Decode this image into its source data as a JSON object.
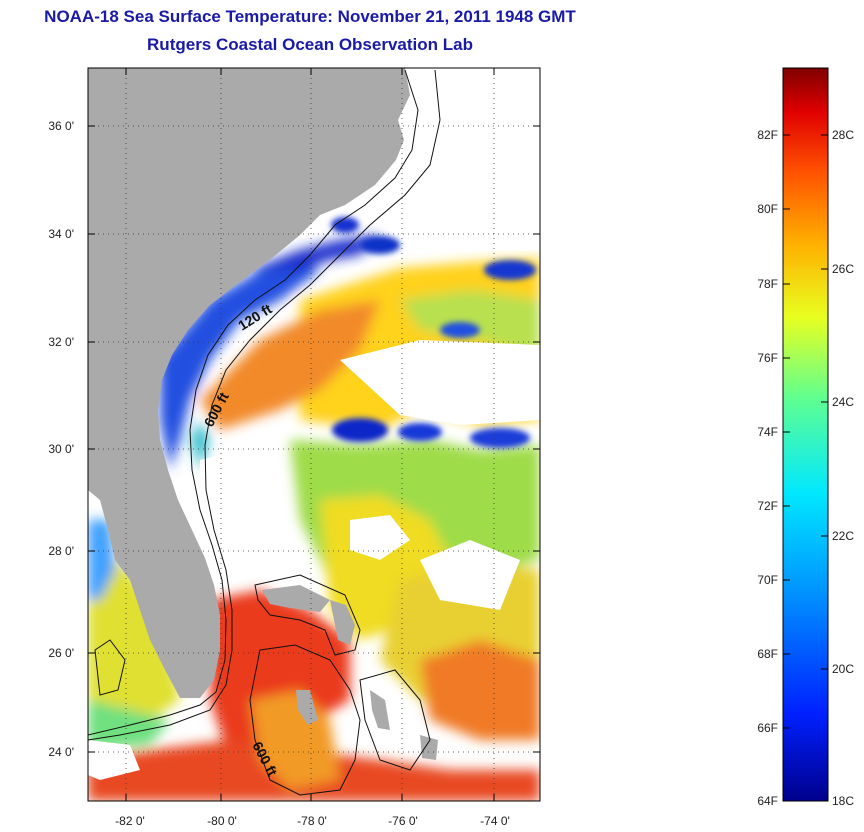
{
  "header": {
    "title": "NOAA-18 Sea Surface Temperature:  November 21, 2011 1948 GMT",
    "subtitle": "Rutgers Coastal Ocean Observation Lab"
  },
  "map": {
    "lat_labels": [
      "36 0'",
      "34 0'",
      "32 0'",
      "30 0'",
      "28 0'",
      "26 0'",
      "24 0'"
    ],
    "lon_labels": [
      "-82 0'",
      "-80 0'",
      "-78 0'",
      "-76 0'",
      "-74 0'"
    ],
    "contour_labels": [
      "120 ft",
      "600 ft",
      "600 ft"
    ],
    "colors": {
      "land": "#aaaaaa",
      "cloud": "#ffffff",
      "warm": "#e8321e",
      "cool": "#1030c0"
    }
  },
  "colorbar": {
    "fahrenheit_labels": [
      "82F",
      "80F",
      "78F",
      "76F",
      "74F",
      "72F",
      "70F",
      "68F",
      "66F",
      "64F"
    ],
    "celsius_labels": [
      "28C",
      "26C",
      "24C",
      "22C",
      "20C",
      "18C"
    ]
  }
}
